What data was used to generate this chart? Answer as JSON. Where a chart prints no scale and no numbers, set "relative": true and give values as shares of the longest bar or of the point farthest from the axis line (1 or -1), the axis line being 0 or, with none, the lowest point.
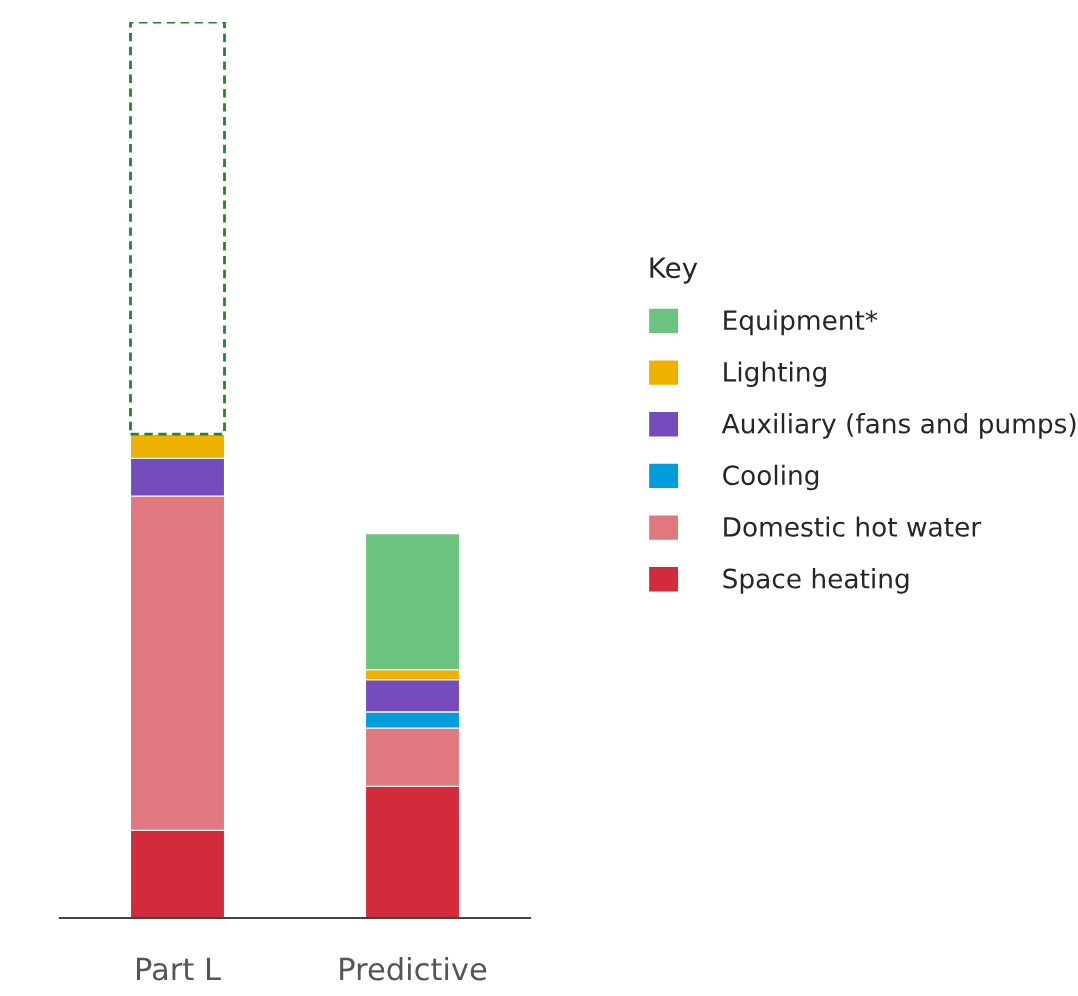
{
  "chart_data": {
    "type": "bar",
    "stacked": true,
    "relative": true,
    "categories": [
      "Part L",
      "Predictive"
    ],
    "legend_title": "Key",
    "legend": "right",
    "series": [
      {
        "name": "Space heating",
        "color": "#d22c3c",
        "values": [
          0.098,
          0.147
        ]
      },
      {
        "name": "Domestic hot water",
        "color": "#e07880",
        "values": [
          0.373,
          0.065
        ]
      },
      {
        "name": "Cooling",
        "color": "#009ddc",
        "values": [
          null,
          0.018
        ]
      },
      {
        "name": "Auxiliary (fans and pumps)",
        "color": "#744cbc",
        "values": [
          0.042,
          0.036
        ]
      },
      {
        "name": "Lighting",
        "color": "#efb000",
        "values": [
          0.027,
          0.011
        ]
      },
      {
        "name": "Equipment*",
        "color": "#6cc380",
        "values": [
          null,
          0.152
        ]
      },
      {
        "color": "#2e7d32",
        "line_style": "dashed",
        "values": [
          0.46,
          null
        ]
      }
    ]
  }
}
